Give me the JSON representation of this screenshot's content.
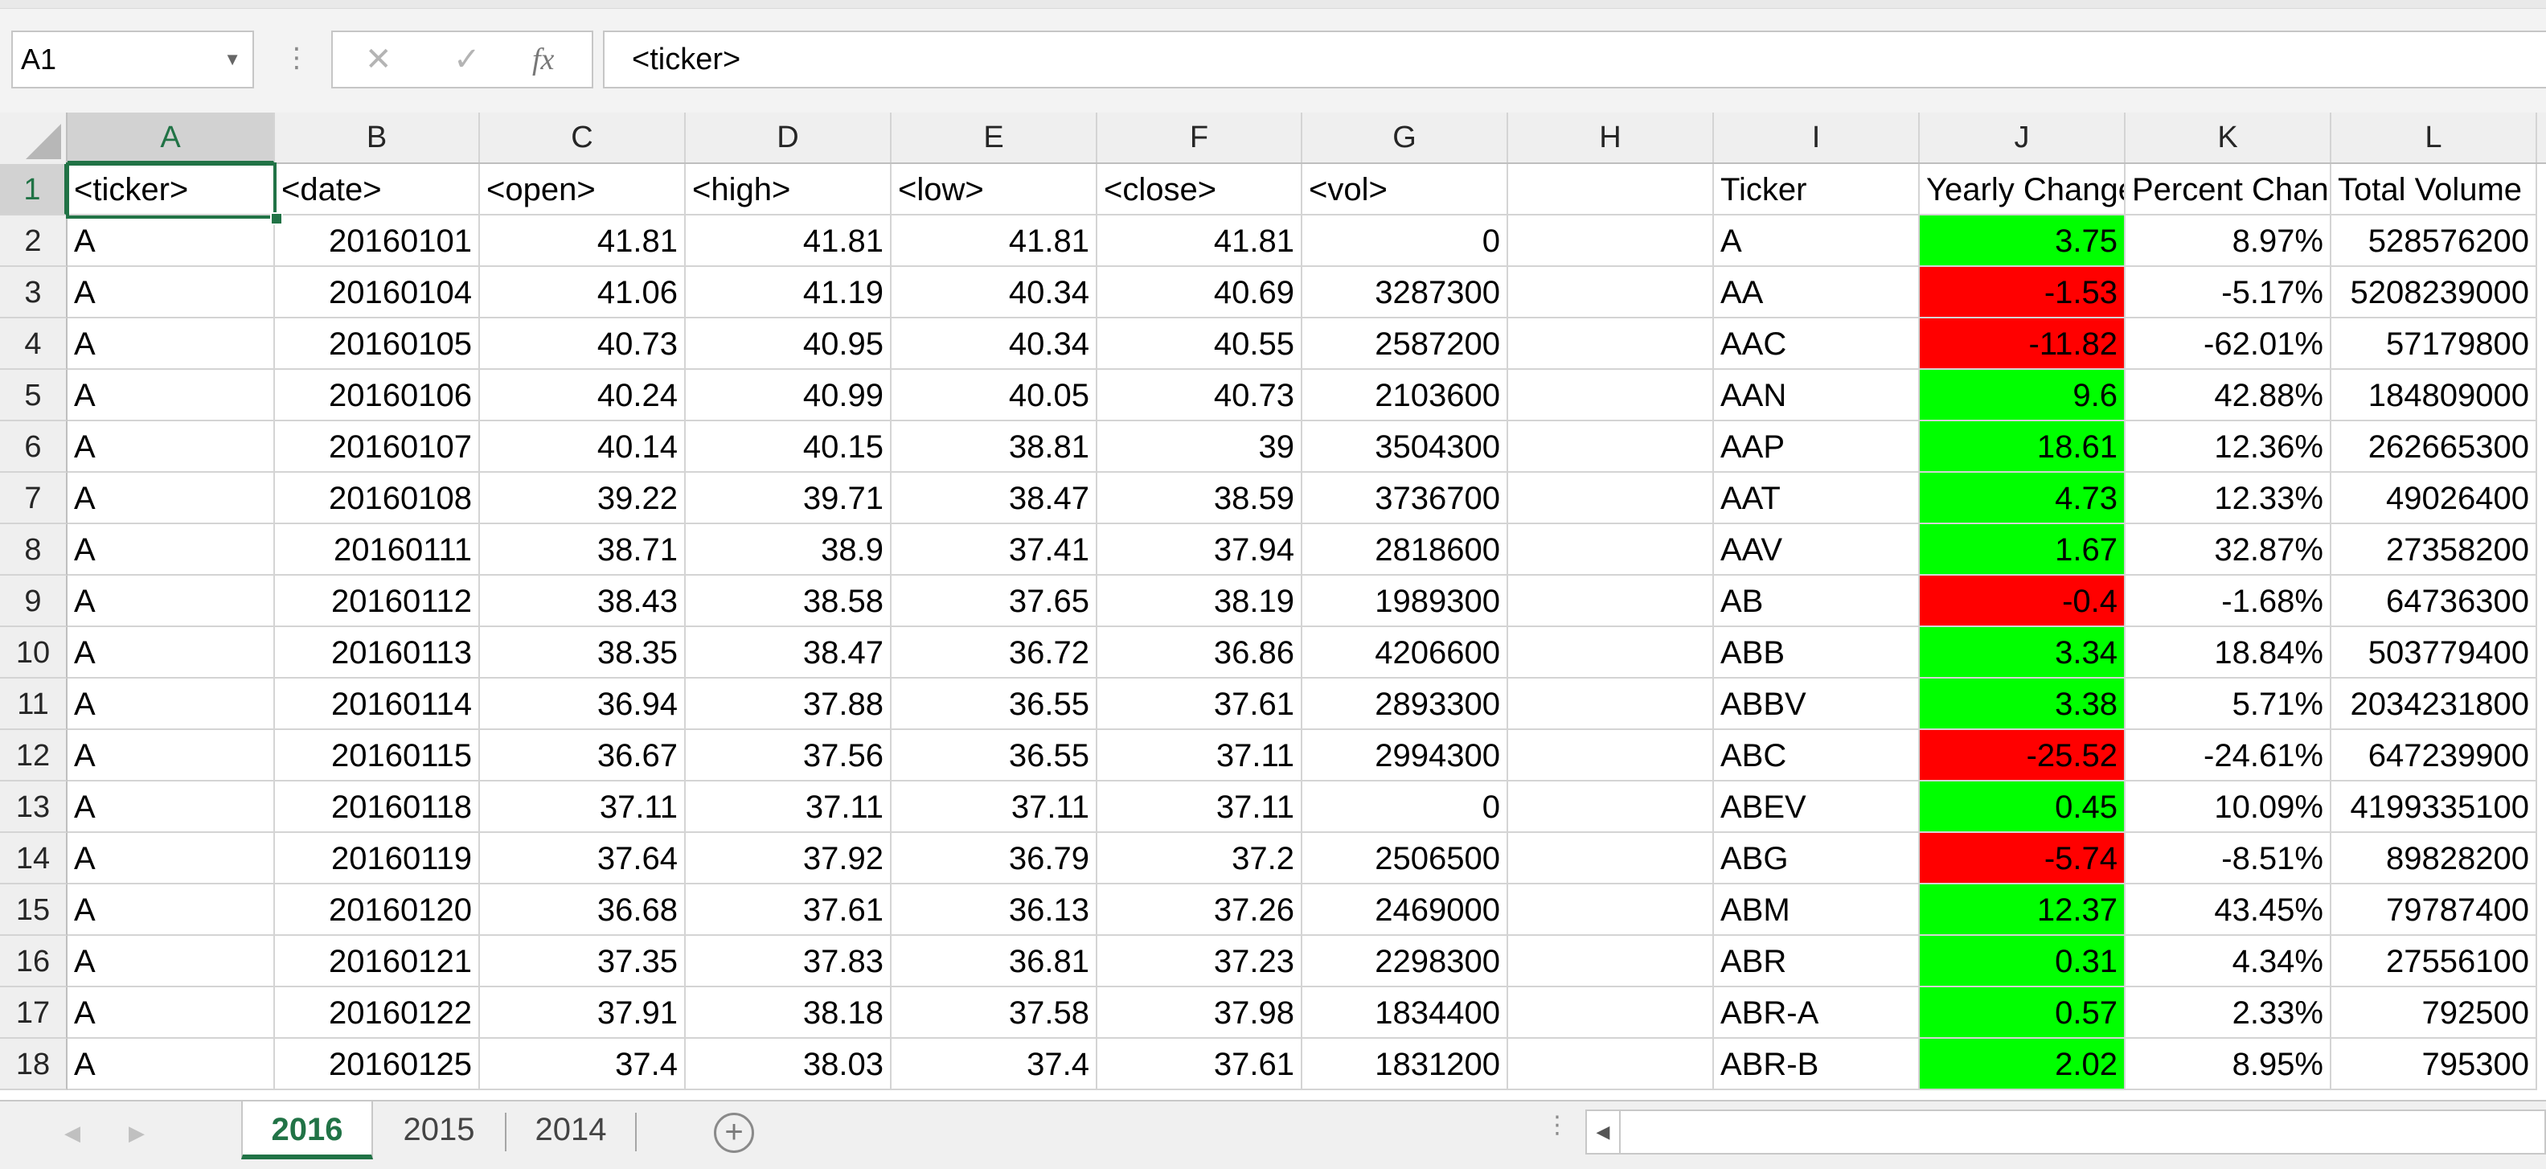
{
  "formula_bar": {
    "name_box": "A1",
    "content": "<ticker>",
    "cancel_icon": "x-icon",
    "enter_icon": "checkmark-icon",
    "fx_label": "fx"
  },
  "columns": [
    "A",
    "B",
    "C",
    "D",
    "E",
    "F",
    "G",
    "H",
    "I",
    "J",
    "K",
    "L"
  ],
  "row_numbers": [
    "1",
    "2",
    "3",
    "4",
    "5",
    "6",
    "7",
    "8",
    "9",
    "10",
    "11",
    "12",
    "13",
    "14",
    "15",
    "16",
    "17",
    "18"
  ],
  "headers": [
    "<ticker>",
    "<date>",
    "<open>",
    "<high>",
    "<low>",
    "<close>",
    "<vol>",
    "",
    "Ticker",
    "Yearly Change",
    "Percent Change",
    "Total Volume"
  ],
  "rows": [
    [
      "A",
      "20160101",
      "41.81",
      "41.81",
      "41.81",
      "41.81",
      "0",
      "",
      "A",
      "3.75",
      "8.97%",
      "528576200"
    ],
    [
      "A",
      "20160104",
      "41.06",
      "41.19",
      "40.34",
      "40.69",
      "3287300",
      "",
      "AA",
      "-1.53",
      "-5.17%",
      "5208239000"
    ],
    [
      "A",
      "20160105",
      "40.73",
      "40.95",
      "40.34",
      "40.55",
      "2587200",
      "",
      "AAC",
      "-11.82",
      "-62.01%",
      "57179800"
    ],
    [
      "A",
      "20160106",
      "40.24",
      "40.99",
      "40.05",
      "40.73",
      "2103600",
      "",
      "AAN",
      "9.6",
      "42.88%",
      "184809000"
    ],
    [
      "A",
      "20160107",
      "40.14",
      "40.15",
      "38.81",
      "39",
      "3504300",
      "",
      "AAP",
      "18.61",
      "12.36%",
      "262665300"
    ],
    [
      "A",
      "20160108",
      "39.22",
      "39.71",
      "38.47",
      "38.59",
      "3736700",
      "",
      "AAT",
      "4.73",
      "12.33%",
      "49026400"
    ],
    [
      "A",
      "20160111",
      "38.71",
      "38.9",
      "37.41",
      "37.94",
      "2818600",
      "",
      "AAV",
      "1.67",
      "32.87%",
      "27358200"
    ],
    [
      "A",
      "20160112",
      "38.43",
      "38.58",
      "37.65",
      "38.19",
      "1989300",
      "",
      "AB",
      "-0.4",
      "-1.68%",
      "64736300"
    ],
    [
      "A",
      "20160113",
      "38.35",
      "38.47",
      "36.72",
      "36.86",
      "4206600",
      "",
      "ABB",
      "3.34",
      "18.84%",
      "503779400"
    ],
    [
      "A",
      "20160114",
      "36.94",
      "37.88",
      "36.55",
      "37.61",
      "2893300",
      "",
      "ABBV",
      "3.38",
      "5.71%",
      "2034231800"
    ],
    [
      "A",
      "20160115",
      "36.67",
      "37.56",
      "36.55",
      "37.11",
      "2994300",
      "",
      "ABC",
      "-25.52",
      "-24.61%",
      "647239900"
    ],
    [
      "A",
      "20160118",
      "37.11",
      "37.11",
      "37.11",
      "37.11",
      "0",
      "",
      "ABEV",
      "0.45",
      "10.09%",
      "4199335100"
    ],
    [
      "A",
      "20160119",
      "37.64",
      "37.92",
      "36.79",
      "37.2",
      "2506500",
      "",
      "ABG",
      "-5.74",
      "-8.51%",
      "89828200"
    ],
    [
      "A",
      "20160120",
      "36.68",
      "37.61",
      "36.13",
      "37.26",
      "2469000",
      "",
      "ABM",
      "12.37",
      "43.45%",
      "79787400"
    ],
    [
      "A",
      "20160121",
      "37.35",
      "37.83",
      "36.81",
      "37.23",
      "2298300",
      "",
      "ABR",
      "0.31",
      "4.34%",
      "27556100"
    ],
    [
      "A",
      "20160122",
      "37.91",
      "38.18",
      "37.58",
      "37.98",
      "1834400",
      "",
      "ABR-A",
      "0.57",
      "2.33%",
      "792500"
    ],
    [
      "A",
      "20160125",
      "37.4",
      "38.03",
      "37.4",
      "37.61",
      "1831200",
      "",
      "ABR-B",
      "2.02",
      "8.95%",
      "795300"
    ]
  ],
  "conditional_colors": {
    "positive": "#00ff00",
    "negative": "#ff0000",
    "accent": "#217346"
  },
  "sheet_tabs": [
    "2016",
    "2015",
    "2014"
  ],
  "active_sheet": "2016",
  "icons": {
    "add_sheet": "plus-circle-icon",
    "scroll_left": "triangle-left-icon",
    "prev_sheet": "chevron-left-icon",
    "next_sheet": "chevron-right-icon"
  }
}
